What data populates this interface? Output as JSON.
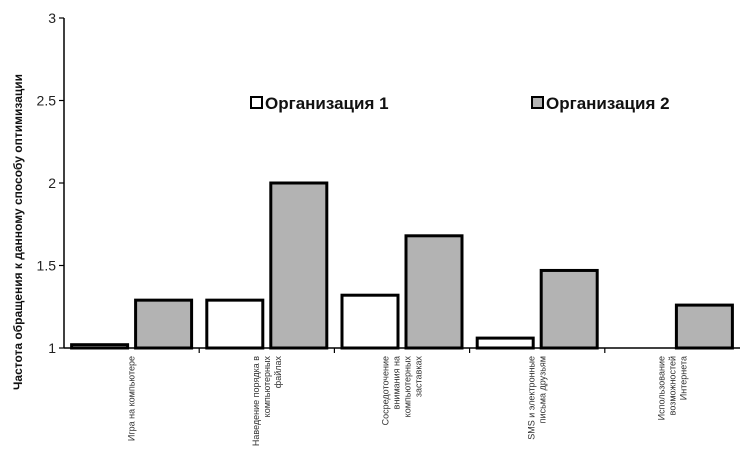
{
  "chart_data": {
    "type": "bar",
    "title": "",
    "xlabel": "",
    "ylabel": "Частота обращения к данному способу оптимизации",
    "ylim": [
      1,
      3
    ],
    "yticks": [
      "1",
      "1.5",
      "2",
      "2.5",
      "3"
    ],
    "categories": [
      [
        "Игра на компьютере"
      ],
      [
        "Наведение порядка в",
        "компьютерных",
        "файлах"
      ],
      [
        "Сосредоточение",
        "внимания на",
        "компьютерных",
        "заставках"
      ],
      [
        "SMS и электронные",
        "письма друзьям"
      ],
      [
        "Использование",
        "возможностей",
        "Интернета"
      ]
    ],
    "series": [
      {
        "name": "Организация 1",
        "color": "#ffffff",
        "values": [
          1.02,
          1.29,
          1.32,
          1.06,
          1.0
        ]
      },
      {
        "name": "Организация 2",
        "color": "#b3b3b3",
        "values": [
          1.29,
          2.0,
          1.68,
          1.47,
          1.26
        ]
      }
    ],
    "legend": "top",
    "grid": false
  }
}
